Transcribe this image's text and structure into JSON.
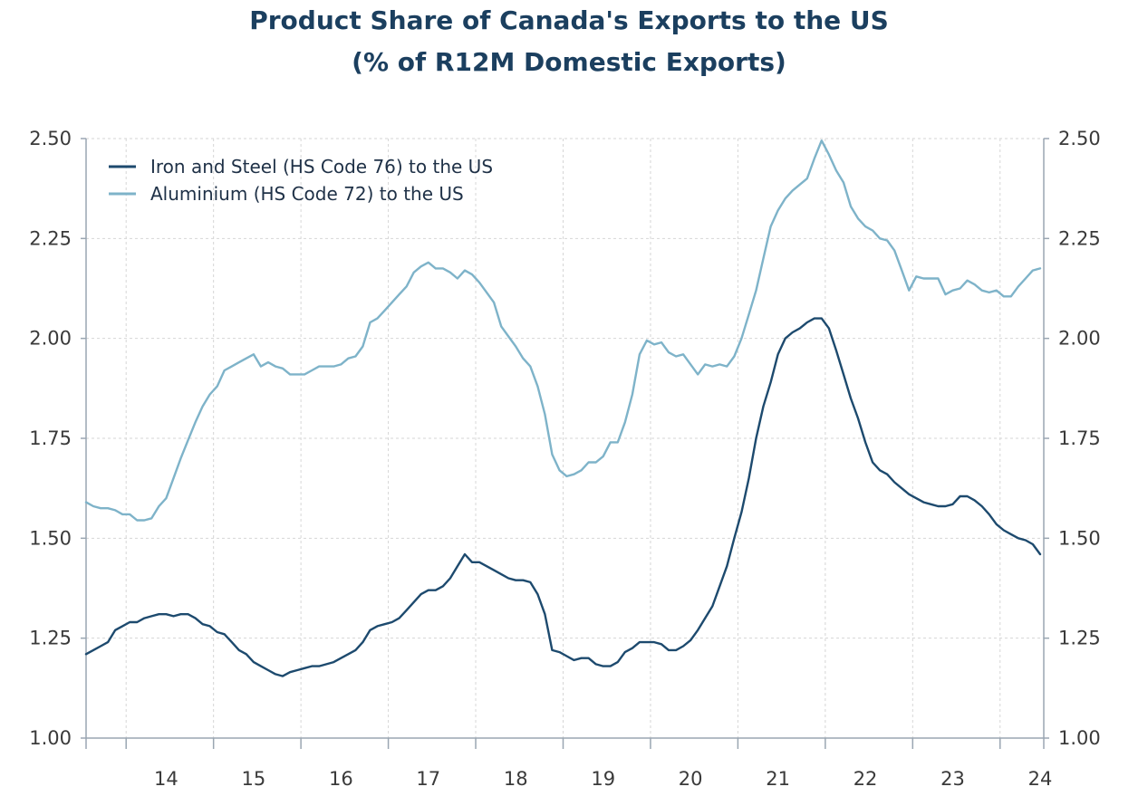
{
  "chart_data": {
    "type": "line",
    "title": "Product Share of Canada's Exports to the US",
    "subtitle": "(% of R12M Domestic Exports)",
    "xlabel": "",
    "ylabel": "",
    "x_start": "2013-07",
    "x_ticks": [
      "14",
      "15",
      "16",
      "17",
      "18",
      "19",
      "20",
      "21",
      "22",
      "23",
      "24"
    ],
    "y_ticks": [
      "1.00",
      "1.25",
      "1.50",
      "1.75",
      "2.00",
      "2.25",
      "2.50"
    ],
    "ylim": [
      1.0,
      2.5
    ],
    "dual_axis_mirrored": true,
    "grid": true,
    "legend_position": "top-left",
    "series": [
      {
        "name": "Iron and Steel (HS Code 76) to the US",
        "color": "#1d4a6e",
        "values": [
          1.21,
          1.22,
          1.23,
          1.24,
          1.27,
          1.28,
          1.29,
          1.29,
          1.3,
          1.305,
          1.31,
          1.31,
          1.305,
          1.31,
          1.31,
          1.3,
          1.285,
          1.28,
          1.265,
          1.26,
          1.24,
          1.22,
          1.21,
          1.19,
          1.18,
          1.17,
          1.16,
          1.155,
          1.165,
          1.17,
          1.175,
          1.18,
          1.18,
          1.185,
          1.19,
          1.2,
          1.21,
          1.22,
          1.24,
          1.27,
          1.28,
          1.285,
          1.29,
          1.3,
          1.32,
          1.34,
          1.36,
          1.37,
          1.37,
          1.38,
          1.4,
          1.43,
          1.46,
          1.44,
          1.44,
          1.43,
          1.42,
          1.41,
          1.4,
          1.395,
          1.395,
          1.39,
          1.36,
          1.31,
          1.22,
          1.215,
          1.205,
          1.195,
          1.2,
          1.2,
          1.185,
          1.18,
          1.18,
          1.19,
          1.215,
          1.225,
          1.24,
          1.24,
          1.24,
          1.235,
          1.22,
          1.22,
          1.23,
          1.245,
          1.27,
          1.3,
          1.33,
          1.38,
          1.43,
          1.5,
          1.565,
          1.65,
          1.75,
          1.83,
          1.89,
          1.96,
          2.0,
          2.015,
          2.025,
          2.04,
          2.05,
          2.05,
          2.025,
          1.97,
          1.91,
          1.85,
          1.8,
          1.74,
          1.69,
          1.67,
          1.66,
          1.64,
          1.625,
          1.61,
          1.6,
          1.59,
          1.585,
          1.58,
          1.58,
          1.585,
          1.605,
          1.605,
          1.595,
          1.58,
          1.56,
          1.535,
          1.52,
          1.51,
          1.5,
          1.495,
          1.485,
          1.46
        ]
      },
      {
        "name": "Aluminium (HS Code 72) to the US",
        "color": "#7eb3c9",
        "values": [
          1.59,
          1.58,
          1.575,
          1.575,
          1.57,
          1.56,
          1.56,
          1.545,
          1.545,
          1.55,
          1.58,
          1.6,
          1.65,
          1.7,
          1.745,
          1.79,
          1.83,
          1.86,
          1.88,
          1.92,
          1.93,
          1.94,
          1.95,
          1.96,
          1.93,
          1.94,
          1.93,
          1.925,
          1.91,
          1.91,
          1.91,
          1.92,
          1.93,
          1.93,
          1.93,
          1.935,
          1.95,
          1.955,
          1.98,
          2.04,
          2.05,
          2.07,
          2.09,
          2.11,
          2.13,
          2.165,
          2.18,
          2.19,
          2.175,
          2.175,
          2.165,
          2.15,
          2.17,
          2.16,
          2.14,
          2.115,
          2.09,
          2.03,
          2.005,
          1.98,
          1.95,
          1.93,
          1.88,
          1.81,
          1.71,
          1.67,
          1.655,
          1.66,
          1.67,
          1.69,
          1.69,
          1.705,
          1.74,
          1.74,
          1.79,
          1.86,
          1.96,
          1.995,
          1.985,
          1.99,
          1.965,
          1.955,
          1.96,
          1.935,
          1.91,
          1.935,
          1.93,
          1.935,
          1.93,
          1.955,
          2.0,
          2.06,
          2.12,
          2.2,
          2.28,
          2.32,
          2.35,
          2.37,
          2.385,
          2.4,
          2.45,
          2.495,
          2.46,
          2.42,
          2.39,
          2.33,
          2.3,
          2.28,
          2.27,
          2.25,
          2.245,
          2.22,
          2.17,
          2.12,
          2.155,
          2.15,
          2.15,
          2.15,
          2.11,
          2.12,
          2.125,
          2.145,
          2.135,
          2.12,
          2.115,
          2.12,
          2.105,
          2.105,
          2.13,
          2.15,
          2.17,
          2.175
        ]
      }
    ]
  }
}
